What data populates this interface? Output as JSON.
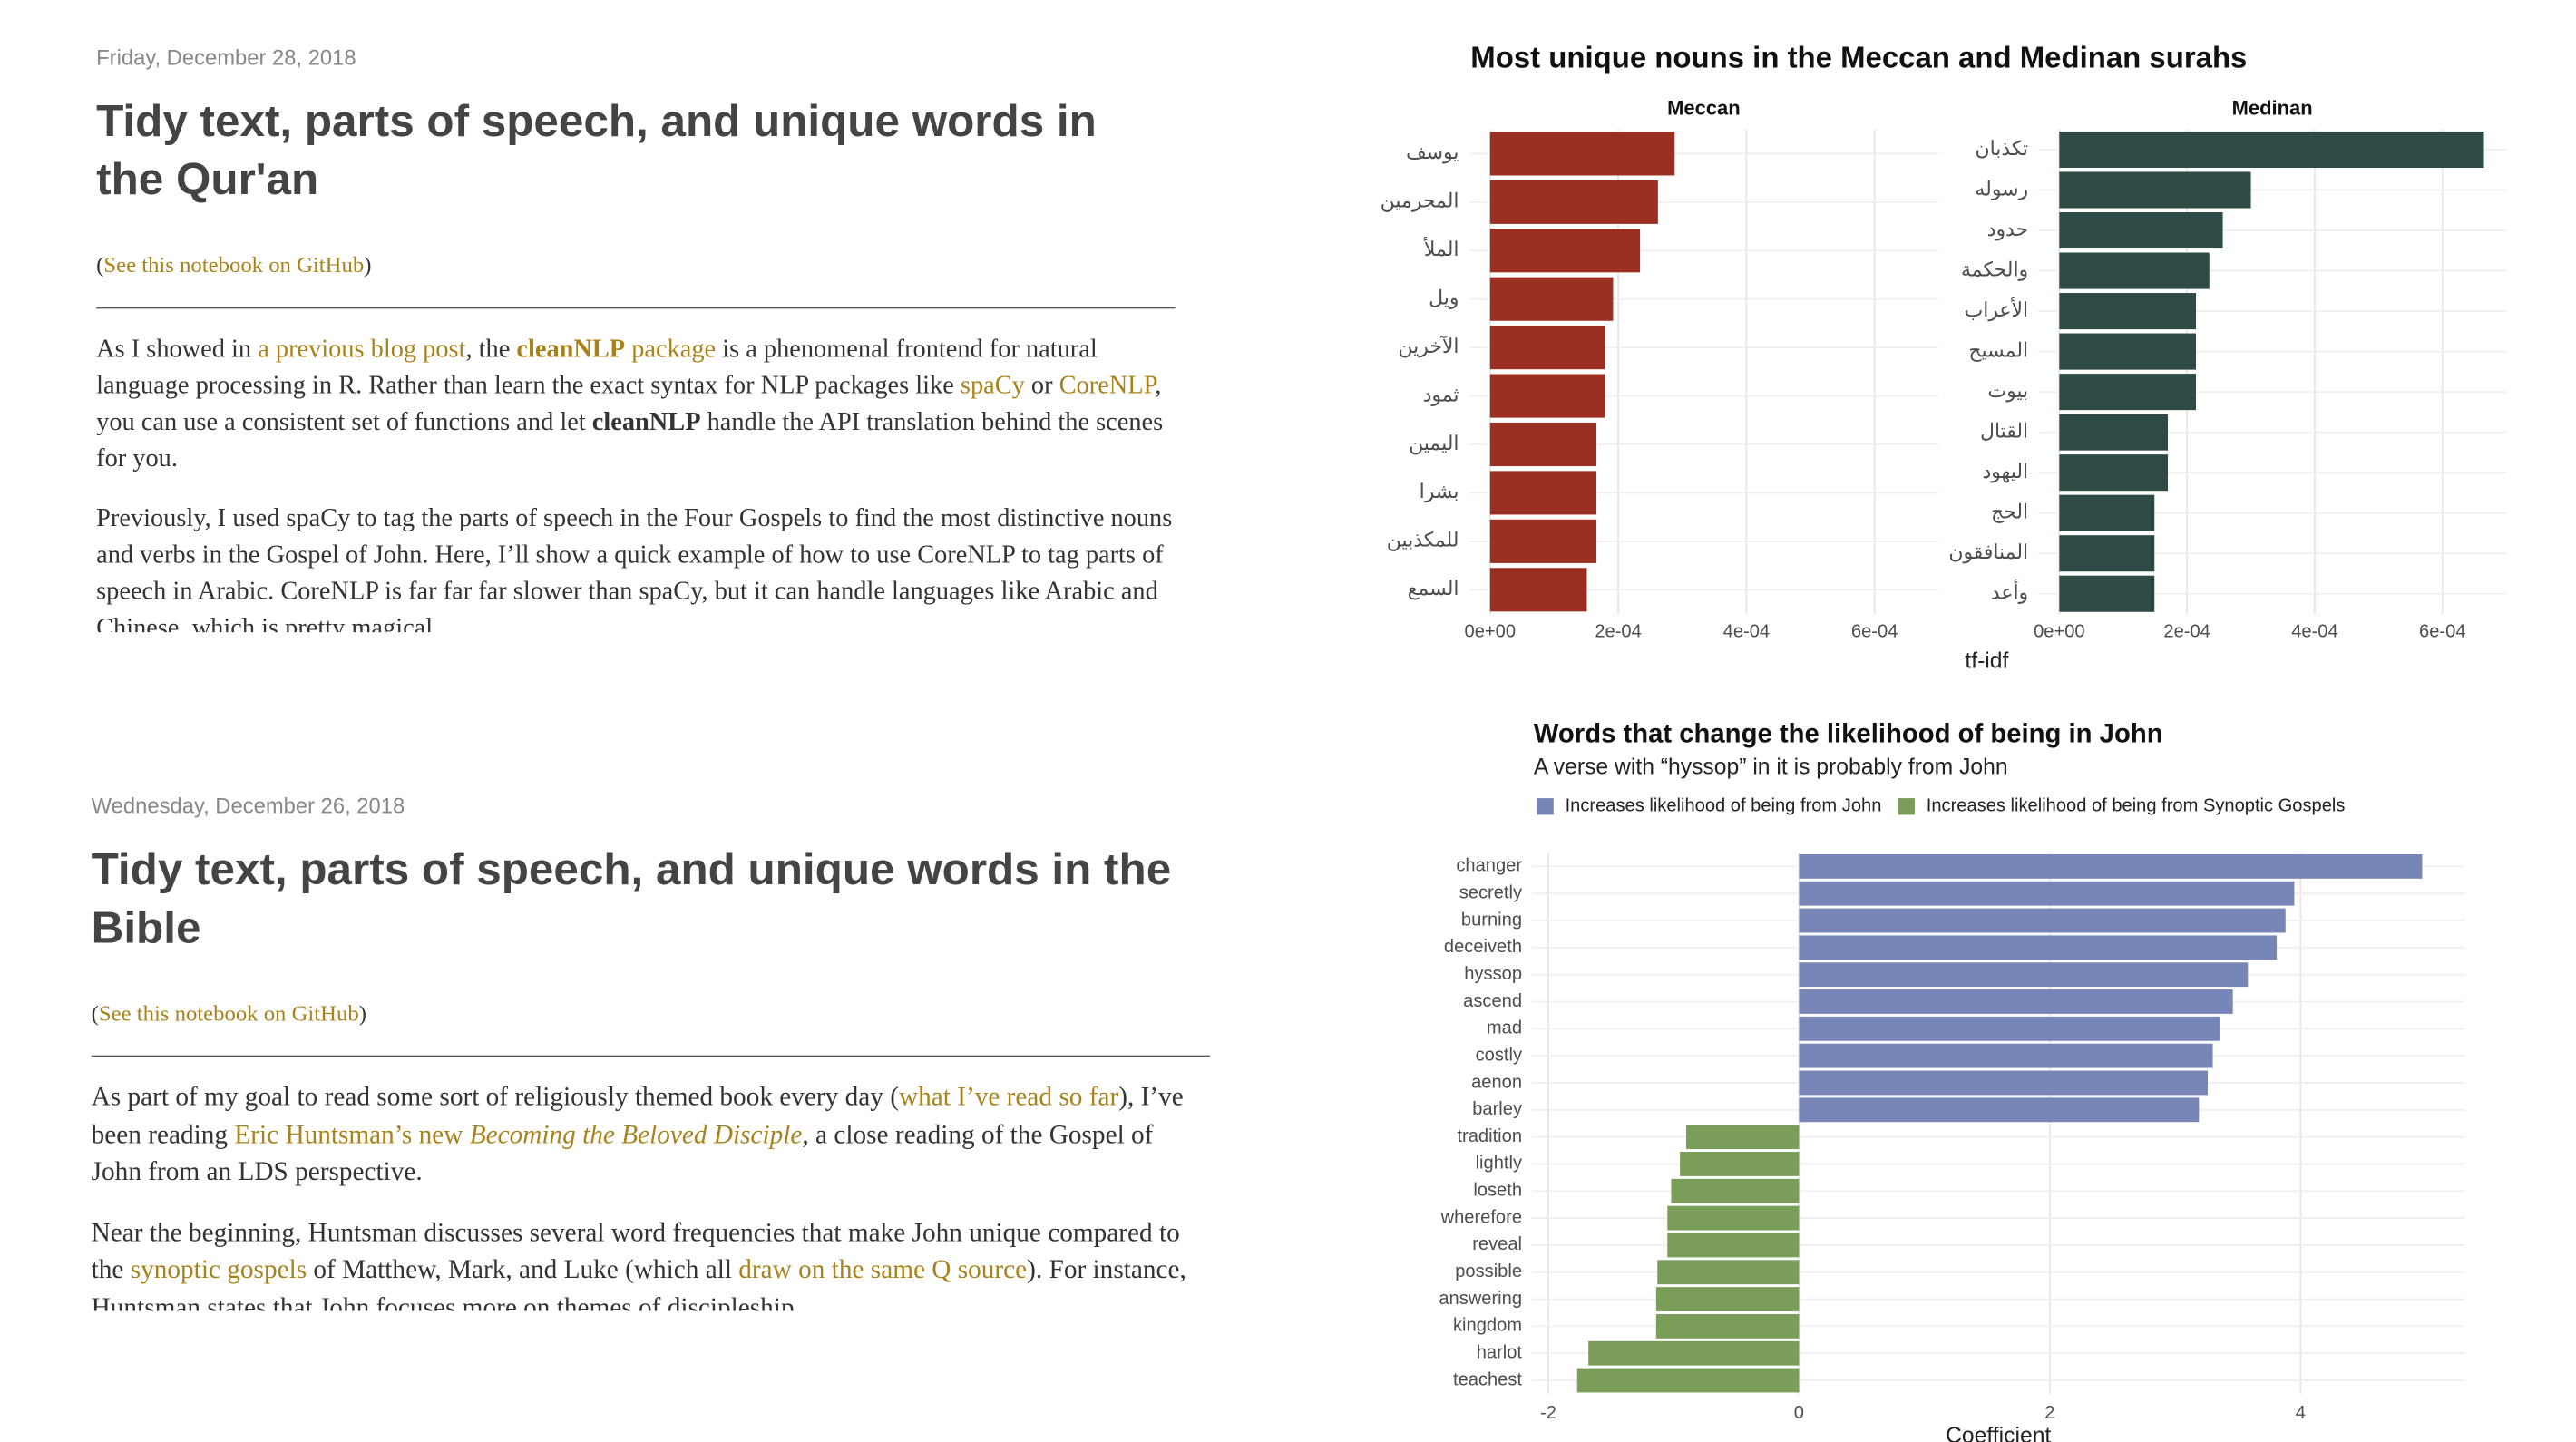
{
  "posts": [
    {
      "date": "Friday, December 28, 2018",
      "title": "Tidy text, parts of speech, and unique words in the Qur'an",
      "notebook": [
        {
          "text": "("
        },
        {
          "text": "See this notebook on GitHub",
          "style": "link"
        },
        {
          "text": ")"
        }
      ],
      "paragraphs": [
        [
          {
            "text": "As I showed in "
          },
          {
            "text": "a previous blog post",
            "style": "link"
          },
          {
            "text": ", the "
          },
          {
            "text": "cleanNLP",
            "style": "link bold"
          },
          {
            "text": " package",
            "style": "link"
          },
          {
            "text": " is a phenomenal frontend for natural language processing in R. Rather than learn the exact syntax for NLP packages like "
          },
          {
            "text": "spaCy",
            "style": "link"
          },
          {
            "text": " or "
          },
          {
            "text": "CoreNLP",
            "style": "link"
          },
          {
            "text": ", you can use a consistent set of functions and let "
          },
          {
            "text": "cleanNLP",
            "style": "bold"
          },
          {
            "text": " handle the API translation behind the scenes for you."
          }
        ],
        [
          {
            "text": "Previously, I used spaCy to tag the parts of speech in the Four Gospels to find the most distinctive nouns and verbs in the Gospel of John. Here, I’ll show a quick example of how to use CoreNLP to tag parts of speech in Arabic. CoreNLP is far far far slower than spaCy, but it can handle languages like Arabic and Chinese, which is pretty magical"
          }
        ]
      ]
    },
    {
      "date": "Wednesday, December 26, 2018",
      "title": "Tidy text, parts of speech, and unique words in the Bible",
      "notebook": [
        {
          "text": "("
        },
        {
          "text": "See this notebook on GitHub",
          "style": "link"
        },
        {
          "text": ")"
        }
      ],
      "paragraphs": [
        [
          {
            "text": "As part of my goal to read some sort of religiously themed book every day ("
          },
          {
            "text": "what I’ve read so far",
            "style": "link"
          },
          {
            "text": "), I’ve been reading "
          },
          {
            "text": "Eric Huntsman’s new ",
            "style": "link"
          },
          {
            "text": "Becoming the Beloved Disciple",
            "style": "link italic"
          },
          {
            "text": ", a close reading of the Gospel of John from an LDS perspective."
          }
        ],
        [
          {
            "text": "Near the beginning, Huntsman discusses several word frequencies that make John unique compared to the "
          },
          {
            "text": "synoptic gospels",
            "style": "link"
          },
          {
            "text": " of Matthew, Mark, and Luke (which all "
          },
          {
            "text": "draw on the same Q source",
            "style": "link"
          },
          {
            "text": "). For instance, Huntsman states that John focuses more on themes of discipleship"
          }
        ]
      ]
    }
  ],
  "chart_data": [
    {
      "type": "bar",
      "orientation": "horizontal",
      "title": "Most unique nouns in the Meccan and Medinan surahs",
      "x_label": "tf-idf",
      "xlim": [
        -3.3e-05,
        0.0007
      ],
      "xticks": [
        {
          "value": 0,
          "label": "0e+00"
        },
        {
          "value": 0.0002,
          "label": "2e-04"
        },
        {
          "value": 0.0004,
          "label": "4e-04"
        },
        {
          "value": 0.0006,
          "label": "6e-04"
        }
      ],
      "grid": true,
      "facets": [
        {
          "name": "Meccan",
          "color": "#9a2f22",
          "categories": [
            "يوسف",
            "المجرمين",
            "الملأ",
            "ويل",
            "الآخرين",
            "ثمود",
            "اليمين",
            "بشرا",
            "للمكذبين",
            "السمع"
          ],
          "values": [
            0.000288,
            0.000262,
            0.000234,
            0.000192,
            0.000179,
            0.000179,
            0.000166,
            0.000166,
            0.000166,
            0.000151
          ]
        },
        {
          "name": "Medinan",
          "color": "#2f4b45",
          "categories": [
            "تكذبان",
            "رسوله",
            "حدود",
            "والحكمة",
            "الأعراب",
            "المسيح",
            "بيوت",
            "القتال",
            "اليهود",
            "الحج",
            "المنافقون",
            "وأعد"
          ],
          "values": [
            0.000665,
            0.0003,
            0.000256,
            0.000235,
            0.000214,
            0.000214,
            0.000214,
            0.00017,
            0.00017,
            0.000149,
            0.000149,
            0.000149
          ]
        }
      ]
    },
    {
      "type": "bar",
      "orientation": "horizontal",
      "title": "Words that change the likelihood of being in John",
      "subtitle": "A verse with “hyssop” in it is probably from John",
      "x_label": "Coefficient",
      "xlim": [
        -2.13,
        5.31
      ],
      "xticks": [
        -2,
        0,
        2,
        4
      ],
      "grid": true,
      "legend": "top-left",
      "categories": [
        "changer",
        "secretly",
        "burning",
        "deceiveth",
        "hyssop",
        "ascend",
        "mad",
        "costly",
        "aenon",
        "barley",
        "tradition",
        "lightly",
        "loseth",
        "wherefore",
        "reveal",
        "possible",
        "answering",
        "kingdom",
        "harlot",
        "teachest"
      ],
      "series": [
        {
          "name": "Increases likelihood of being from John",
          "color": "#7785b7",
          "values": [
            4.97,
            3.95,
            3.88,
            3.81,
            3.58,
            3.46,
            3.36,
            3.3,
            3.26,
            3.19,
            null,
            null,
            null,
            null,
            null,
            null,
            null,
            null,
            null,
            null
          ]
        },
        {
          "name": "Increases likelihood of being from Synoptic Gospels",
          "color": "#7a9e5a",
          "values": [
            null,
            null,
            null,
            null,
            null,
            null,
            null,
            null,
            null,
            null,
            -0.9,
            -0.95,
            -1.02,
            -1.05,
            -1.05,
            -1.13,
            -1.14,
            -1.14,
            -1.68,
            -1.77
          ]
        }
      ]
    }
  ]
}
